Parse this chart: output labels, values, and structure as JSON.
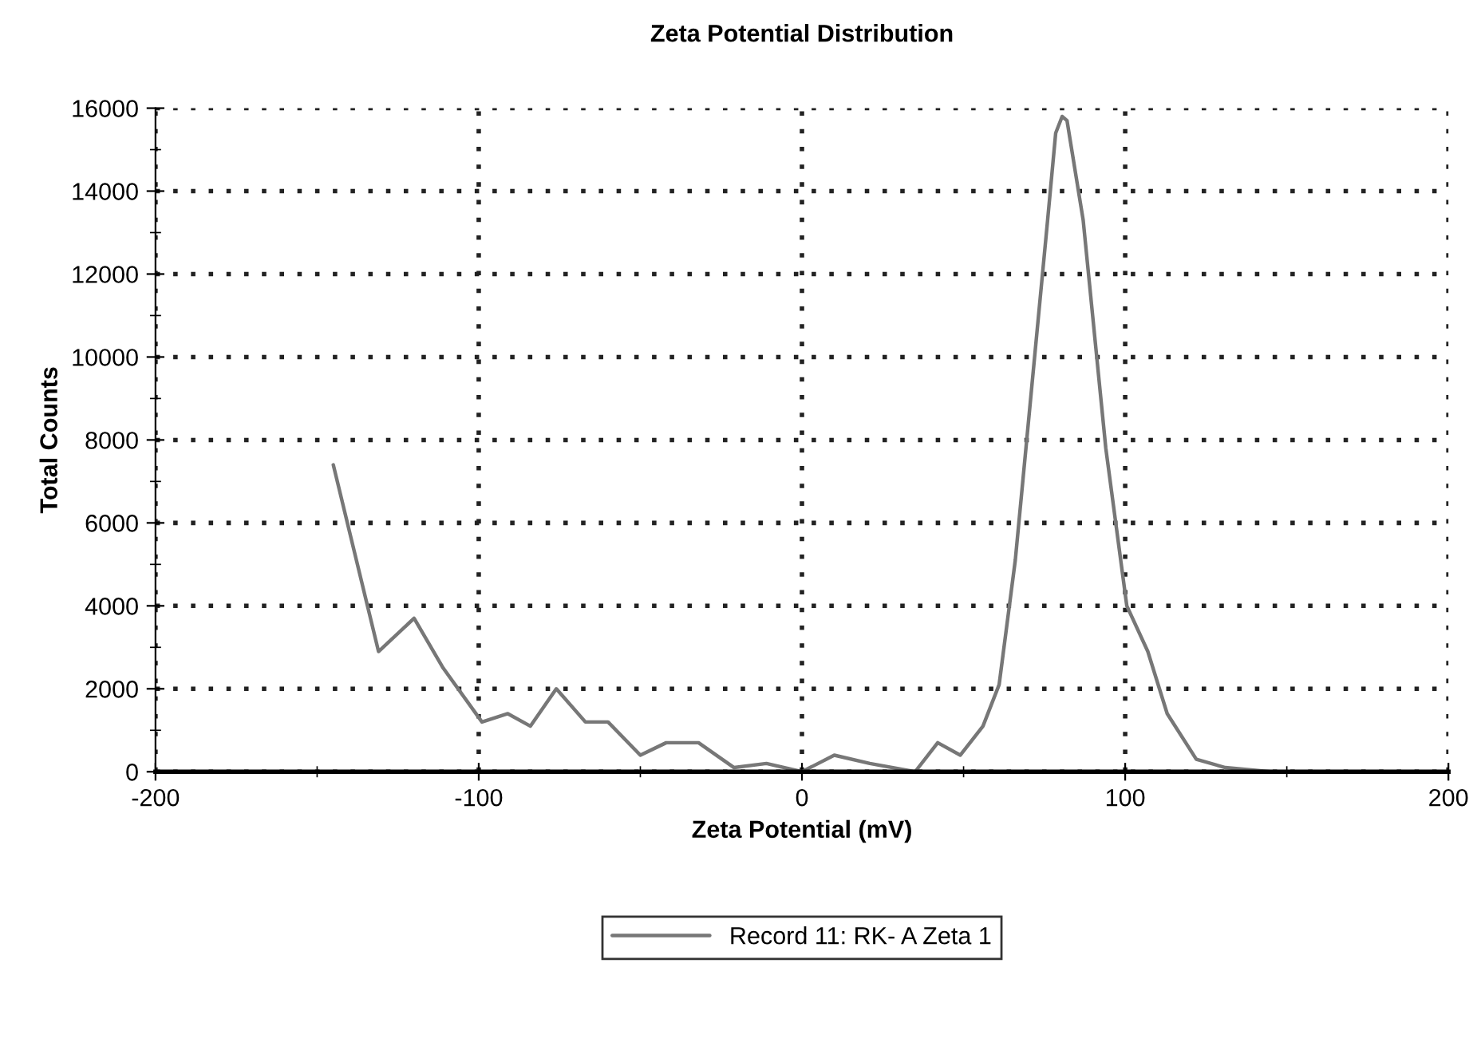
{
  "chart_data": {
    "type": "line",
    "title": "Zeta Potential Distribution",
    "xlabel": "Zeta Potential (mV)",
    "ylabel": "Total Counts",
    "xlim": [
      -200,
      200
    ],
    "xticks": [
      -200,
      -100,
      0,
      100,
      200
    ],
    "ylim": [
      0,
      16000
    ],
    "yticks": [
      0,
      2000,
      4000,
      6000,
      8000,
      10000,
      12000,
      14000,
      16000
    ],
    "grid": true,
    "legend": "bottom",
    "line_style": "solid",
    "marker": "none",
    "series": [
      {
        "name": "Record 11: RK- A Zeta 1",
        "color": "#777777",
        "x": [
          -145,
          -131,
          -120,
          -111,
          -99,
          -91,
          -84,
          -76,
          -67,
          -60,
          -50,
          -42,
          -32,
          -21,
          -11,
          0,
          10,
          21,
          35,
          42,
          49,
          56,
          61,
          66,
          71,
          76,
          78.5,
          80.5,
          82,
          87,
          94,
          100.5,
          107,
          113,
          122,
          131,
          145,
          150
        ],
        "values": [
          7400,
          2900,
          3700,
          2500,
          1200,
          1400,
          1100,
          2000,
          1200,
          1200,
          400,
          700,
          700,
          100,
          200,
          0,
          400,
          200,
          0,
          700,
          400,
          1100,
          2100,
          5100,
          9200,
          13300,
          15400,
          15800,
          15700,
          13300,
          7800,
          4000,
          2900,
          1400,
          300,
          100,
          0,
          0
        ]
      }
    ]
  }
}
